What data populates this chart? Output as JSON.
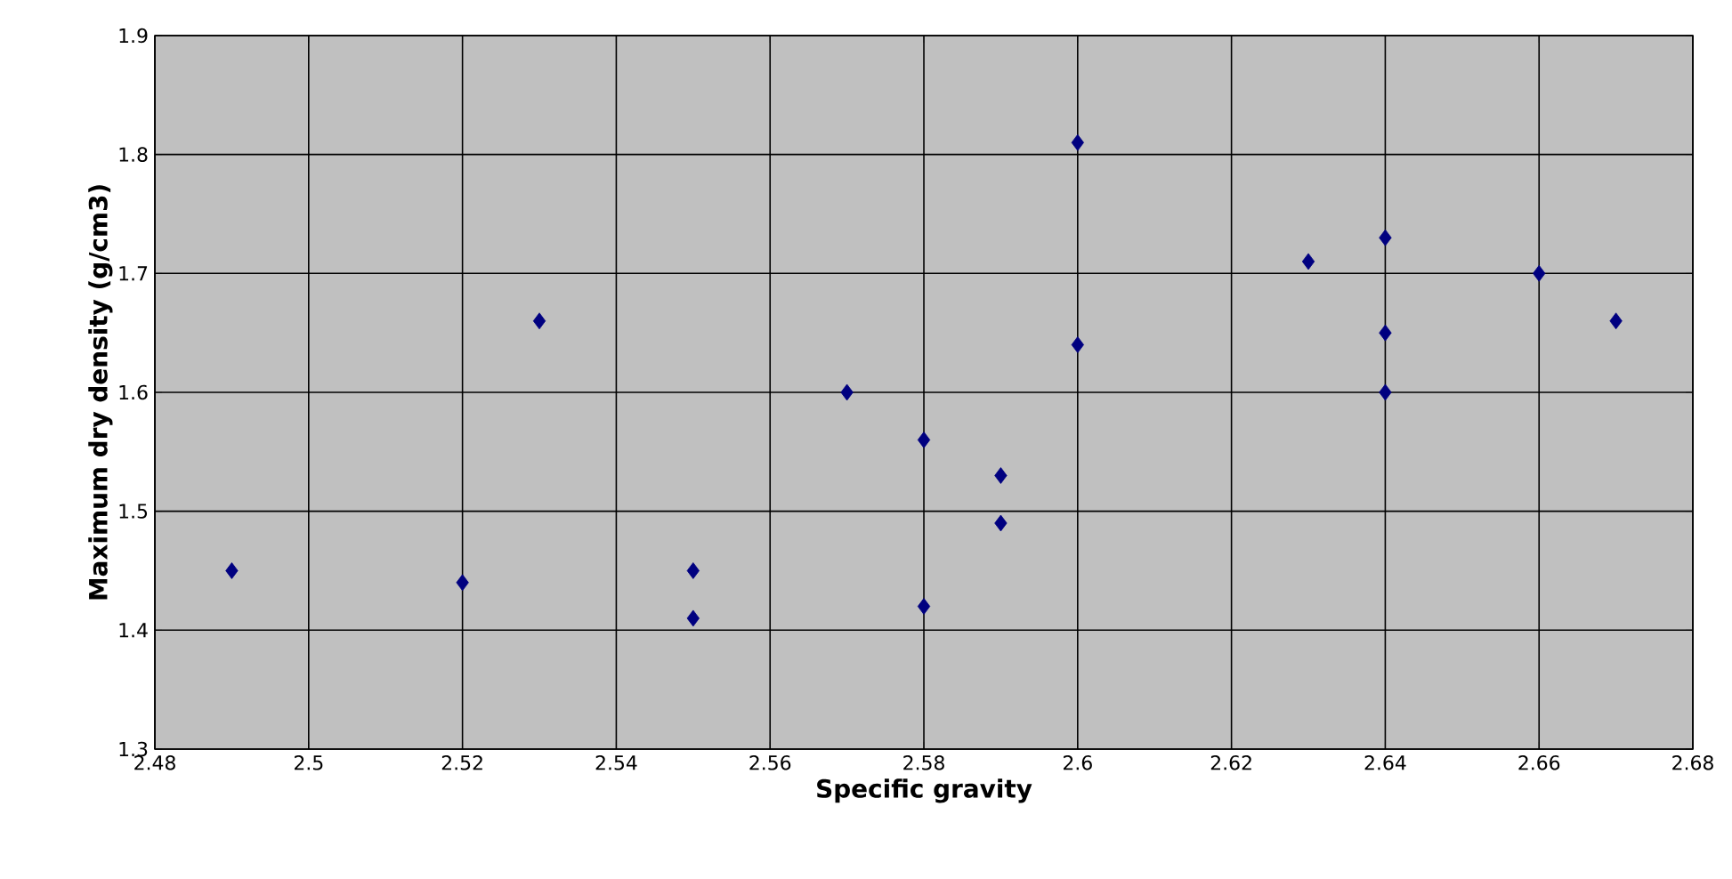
{
  "chart_data": {
    "type": "scatter",
    "xlabel": "Specific gravity",
    "ylabel": "Maximum dry density (g/cm3)",
    "x": [
      2.49,
      2.52,
      2.53,
      2.55,
      2.55,
      2.57,
      2.58,
      2.58,
      2.59,
      2.59,
      2.6,
      2.6,
      2.63,
      2.64,
      2.64,
      2.64,
      2.66,
      2.67
    ],
    "values": [
      1.45,
      1.44,
      1.66,
      1.45,
      1.41,
      1.6,
      1.56,
      1.42,
      1.53,
      1.49,
      1.81,
      1.64,
      1.71,
      1.73,
      1.65,
      1.6,
      1.7,
      1.66
    ],
    "color": "#000080",
    "marker": "diamond",
    "grid": true,
    "xlim": [
      2.48,
      2.68
    ],
    "xticks": [
      2.48,
      2.5,
      2.52,
      2.54,
      2.56,
      2.58,
      2.6,
      2.62,
      2.64,
      2.66,
      2.68
    ],
    "ylim": [
      1.3,
      1.9
    ],
    "yticks": [
      1.3,
      1.4,
      1.5,
      1.6,
      1.7,
      1.8,
      1.9
    ]
  }
}
